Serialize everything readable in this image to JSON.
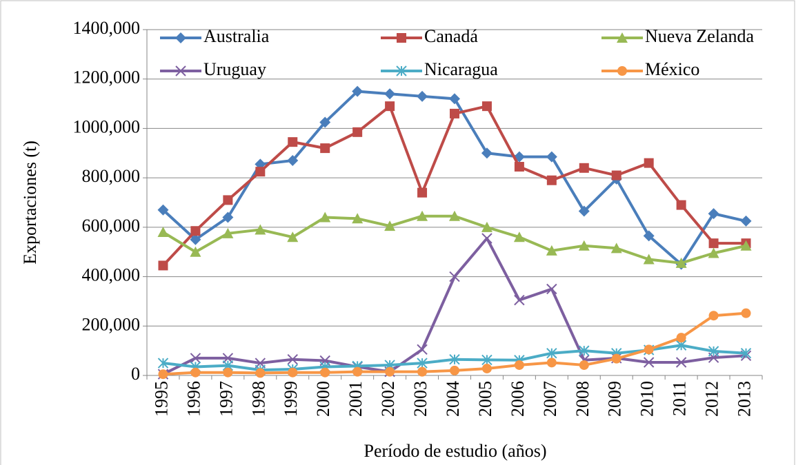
{
  "chart_data": {
    "type": "line",
    "y_label": "Exportaciones (t)",
    "x_label": "Período de estudio (años)",
    "categories": [
      "1995",
      "1996",
      "1997",
      "1998",
      "1999",
      "2000",
      "2001",
      "2002",
      "2003",
      "2004",
      "2005",
      "2006",
      "2007",
      "2008",
      "2009",
      "2010",
      "2011",
      "2012",
      "2013"
    ],
    "ylim": [
      0,
      1400
    ],
    "yticks": [
      0,
      {
        "value": 200,
        "label": "200,000"
      },
      {
        "value": 400,
        "label": "400,000"
      },
      {
        "value": 600,
        "label": "600,000"
      },
      {
        "value": 800,
        "label": "800,000"
      },
      {
        "value": 1000,
        "label": "1000,000"
      },
      {
        "value": 1200,
        "label": "1200,000"
      },
      {
        "value": 1400,
        "label": "1400,000"
      }
    ],
    "grid": true,
    "legend": "top",
    "series": [
      {
        "name": "Australia",
        "color": "#4a7ebb",
        "marker": "diamond",
        "values": [
          670,
          550,
          640,
          855,
          870,
          1025,
          1150,
          1140,
          1130,
          1120,
          900,
          885,
          885,
          665,
          795,
          565,
          450,
          655,
          625
        ]
      },
      {
        "name": "Canadá",
        "color": "#be4b48",
        "marker": "square",
        "values": [
          445,
          585,
          710,
          825,
          945,
          920,
          985,
          1090,
          740,
          1060,
          1090,
          845,
          790,
          840,
          810,
          860,
          690,
          535,
          535
        ]
      },
      {
        "name": "Nueva Zelanda",
        "color": "#98b954",
        "marker": "triangle",
        "values": [
          580,
          500,
          575,
          590,
          560,
          640,
          635,
          605,
          645,
          645,
          600,
          560,
          505,
          525,
          515,
          470,
          455,
          495,
          525
        ]
      },
      {
        "name": "Uruguay",
        "color": "#7d5fa0",
        "marker": "x",
        "values": [
          5,
          70,
          70,
          50,
          65,
          60,
          35,
          15,
          105,
          400,
          555,
          305,
          350,
          62,
          70,
          53,
          53,
          72,
          80
        ]
      },
      {
        "name": "Nicaragua",
        "color": "#4bacc6",
        "marker": "star",
        "values": [
          50,
          35,
          40,
          22,
          25,
          35,
          38,
          42,
          50,
          65,
          63,
          62,
          90,
          100,
          90,
          103,
          122,
          98,
          90
        ]
      },
      {
        "name": "México",
        "color": "#f79646",
        "marker": "circle",
        "values": [
          5,
          12,
          12,
          10,
          12,
          12,
          15,
          15,
          15,
          20,
          28,
          42,
          52,
          42,
          68,
          105,
          153,
          242,
          252
        ]
      }
    ]
  }
}
